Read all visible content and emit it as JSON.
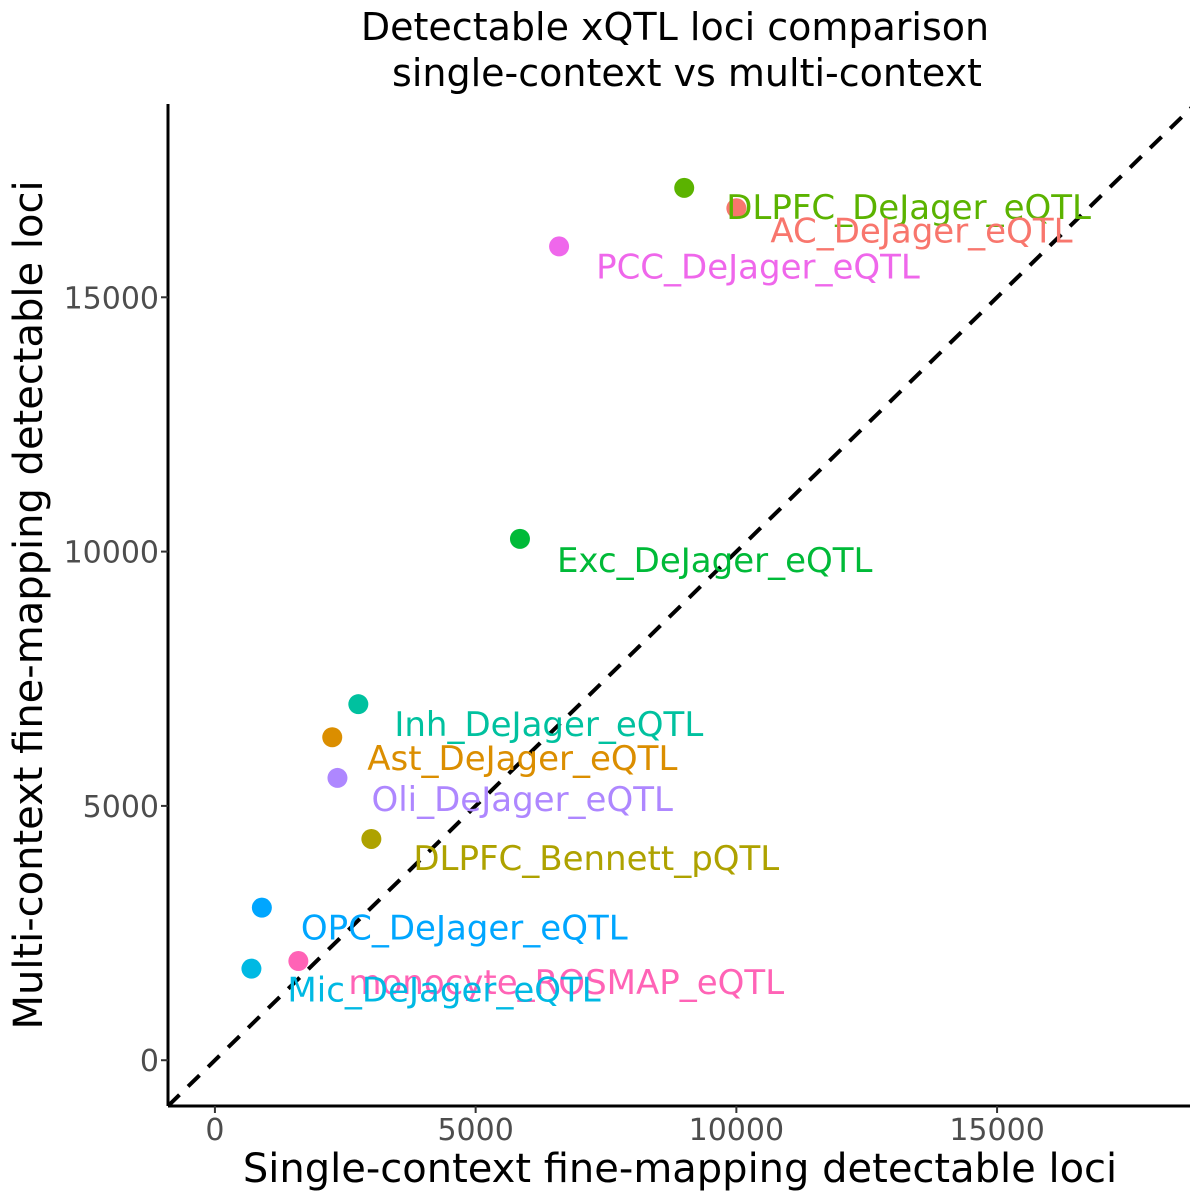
{
  "chart_data": {
    "type": "scatter",
    "title": "Detectable xQTL loci comparison",
    "subtitle": "single-context vs multi-context",
    "xlabel": "Single-context fine-mapping detectable loci",
    "ylabel": "Multi-context fine-mapping detectable loci",
    "xlim": [
      -900,
      18700
    ],
    "ylim": [
      -900,
      18800
    ],
    "x_ticks": [
      0,
      5000,
      10000,
      15000
    ],
    "y_ticks": [
      0,
      5000,
      10000,
      15000
    ],
    "reference_line": "y = x",
    "grid": false,
    "legend": "none",
    "points": [
      {
        "label": "DLPFC_DeJager_eQTL",
        "x": 9000,
        "y": 17150,
        "color": "#5BB300"
      },
      {
        "label": "AC_DeJager_eQTL",
        "x": 10000,
        "y": 16750,
        "color": "#F8766D"
      },
      {
        "label": "PCC_DeJager_eQTL",
        "x": 6600,
        "y": 16000,
        "color": "#EF67EB"
      },
      {
        "label": "Exc_DeJager_eQTL",
        "x": 5850,
        "y": 10250,
        "color": "#00BA38"
      },
      {
        "label": "Inh_DeJager_eQTL",
        "x": 2750,
        "y": 7000,
        "color": "#00C19F"
      },
      {
        "label": "Ast_DeJager_eQTL",
        "x": 2250,
        "y": 6350,
        "color": "#DB8E00"
      },
      {
        "label": "Oli_DeJager_eQTL",
        "x": 2350,
        "y": 5550,
        "color": "#AE87FF"
      },
      {
        "label": "DLPFC_Bennett_pQTL",
        "x": 3000,
        "y": 4350,
        "color": "#AEA200"
      },
      {
        "label": "OPC_DeJager_eQTL",
        "x": 900,
        "y": 3000,
        "color": "#00A6FF"
      },
      {
        "label": "monocyte_ROSMAP_eQTL",
        "x": 1600,
        "y": 1950,
        "color": "#FF63B6"
      },
      {
        "label": "Mic_DeJager_eQTL",
        "x": 700,
        "y": 1800,
        "color": "#00B9E3"
      }
    ]
  }
}
